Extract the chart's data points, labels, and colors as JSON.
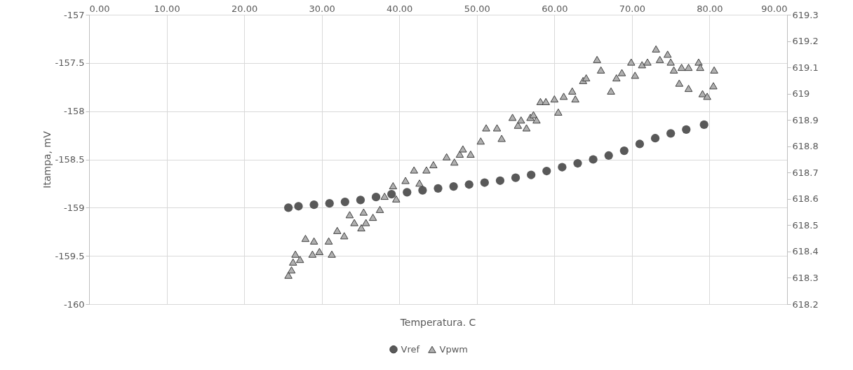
{
  "chart_data": {
    "type": "scatter",
    "xlabel": "Temperatura. C",
    "ylabel": "Itampa, mV",
    "xlim": [
      0,
      90
    ],
    "xticks": [
      {
        "value": 0,
        "label": "0.00"
      },
      {
        "value": 10,
        "label": "10.00"
      },
      {
        "value": 20,
        "label": "20.00"
      },
      {
        "value": 30,
        "label": "30.00"
      },
      {
        "value": 40,
        "label": "40.00"
      },
      {
        "value": 50,
        "label": "50.00"
      },
      {
        "value": 60,
        "label": "60.00"
      },
      {
        "value": 70,
        "label": "70.00"
      },
      {
        "value": 80,
        "label": "80.00"
      },
      {
        "value": 90,
        "label": "90.00"
      }
    ],
    "ylim": [
      -160,
      -157
    ],
    "yticks": [
      -160,
      -159.5,
      -159,
      -158.5,
      -158,
      -157.5,
      -157
    ],
    "y2lim": [
      618.2,
      619.3
    ],
    "y2ticks": [
      618.2,
      618.3,
      618.4,
      618.5,
      618.6,
      618.7,
      618.8,
      618.9,
      619,
      619.1,
      619.2,
      619.3
    ],
    "grid": true,
    "legend": "bottom",
    "series": [
      {
        "name": "Vref",
        "color": "#595959",
        "marker": "circle",
        "x": [
          25.7,
          27,
          29,
          31,
          33,
          35,
          37,
          39,
          41,
          43,
          45,
          47,
          49,
          51,
          53,
          55,
          57,
          59,
          61,
          63,
          65,
          67,
          69,
          71,
          73,
          75,
          77,
          79.3
        ],
        "values": [
          -159.0,
          -158.985,
          -158.97,
          -158.955,
          -158.94,
          -158.92,
          -158.89,
          -158.86,
          -158.84,
          -158.82,
          -158.8,
          -158.78,
          -158.76,
          -158.74,
          -158.72,
          -158.69,
          -158.66,
          -158.62,
          -158.58,
          -158.54,
          -158.5,
          -158.46,
          -158.41,
          -158.34,
          -158.28,
          -158.23,
          -158.19,
          -158.14
        ]
      },
      {
        "name": "Vpwm",
        "color": "#b0b0b0",
        "marker": "triangle",
        "axis": "y2",
        "x": [
          25.7,
          26.1,
          26.3,
          26.6,
          27.2,
          27.9,
          28.8,
          29.0,
          29.7,
          30.9,
          31.3,
          32.0,
          32.9,
          33.6,
          34.2,
          35.1,
          35.4,
          35.7,
          36.6,
          37.5,
          38.1,
          39.2,
          39.6,
          40.8,
          41.9,
          42.6,
          43.5,
          44.4,
          46.1,
          47.1,
          47.8,
          48.2,
          49.2,
          50.5,
          51.2,
          52.6,
          53.2,
          54.6,
          55.3,
          55.7,
          56.4,
          56.9,
          57.3,
          57.7,
          58.2,
          58.9,
          60.0,
          60.5,
          61.2,
          62.3,
          62.7,
          63.7,
          64.1,
          65.5,
          66.0,
          67.3,
          68.0,
          68.7,
          69.9,
          70.4,
          71.3,
          72.0,
          73.1,
          73.6,
          74.6,
          75.0,
          75.4,
          76.1,
          76.4,
          77.3,
          77.3,
          78.6,
          78.8,
          79.1,
          79.7,
          80.5,
          80.6
        ],
        "values": [
          618.31,
          618.33,
          618.36,
          618.39,
          618.37,
          618.45,
          618.39,
          618.44,
          618.4,
          618.44,
          618.39,
          618.48,
          618.46,
          618.54,
          618.51,
          618.49,
          618.55,
          618.51,
          618.53,
          618.56,
          618.61,
          618.65,
          618.6,
          618.67,
          618.71,
          618.66,
          618.71,
          618.73,
          618.76,
          618.74,
          618.77,
          618.79,
          618.77,
          618.82,
          618.87,
          618.87,
          618.83,
          618.91,
          618.88,
          618.9,
          618.87,
          618.91,
          618.92,
          618.9,
          618.97,
          618.97,
          618.98,
          618.93,
          618.99,
          619.01,
          618.98,
          619.05,
          619.06,
          619.13,
          619.09,
          619.01,
          619.06,
          619.08,
          619.12,
          619.07,
          619.11,
          619.12,
          619.17,
          619.13,
          619.15,
          619.12,
          619.09,
          619.04,
          619.1,
          619.1,
          619.02,
          619.12,
          619.1,
          619.0,
          618.99,
          619.03,
          619.09
        ]
      }
    ]
  }
}
